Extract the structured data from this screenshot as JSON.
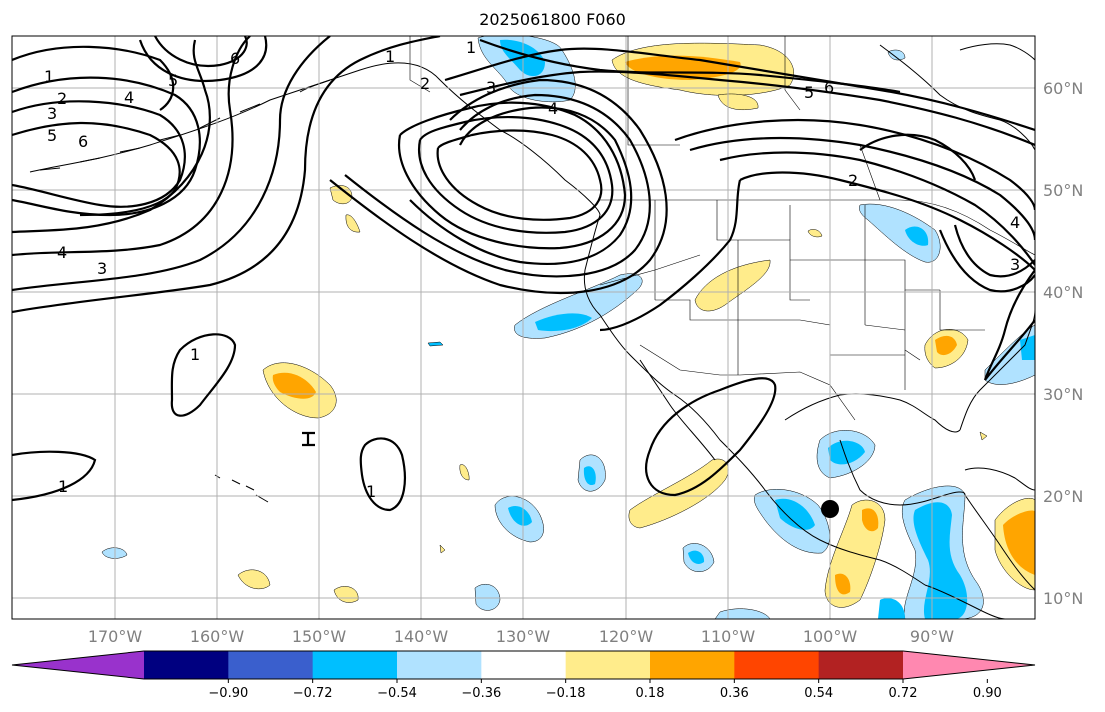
{
  "title": "2025061800 F060",
  "longitude_labels": [
    "170°W",
    "160°W",
    "150°W",
    "140°W",
    "130°W",
    "120°W",
    "110°W",
    "100°W",
    "90°W"
  ],
  "latitude_labels": [
    "60°N",
    "50°N",
    "40°N",
    "30°N",
    "20°N",
    "10°N"
  ],
  "contour_labels": [
    "1",
    "2",
    "3",
    "4",
    "5",
    "6",
    "1",
    "5",
    "6",
    "2",
    "4",
    "3",
    "4",
    "5",
    "6",
    "1",
    "3",
    "4",
    "1",
    "1",
    "1",
    "2",
    "3"
  ],
  "colorbar": {
    "colors": [
      "#9932cc",
      "#000080",
      "#3a5fcd",
      "#00bfff",
      "#b0e2ff",
      "#ffffff",
      "#ffec8b",
      "#ffa500",
      "#ff4500",
      "#b22222",
      "#ff88b0"
    ],
    "tick_labels": [
      "−0.90",
      "−0.72",
      "−0.54",
      "−0.36",
      "−0.18",
      "0.18",
      "0.36",
      "0.54",
      "0.72",
      "0.90"
    ]
  },
  "marker": {
    "name": "black-dot"
  }
}
